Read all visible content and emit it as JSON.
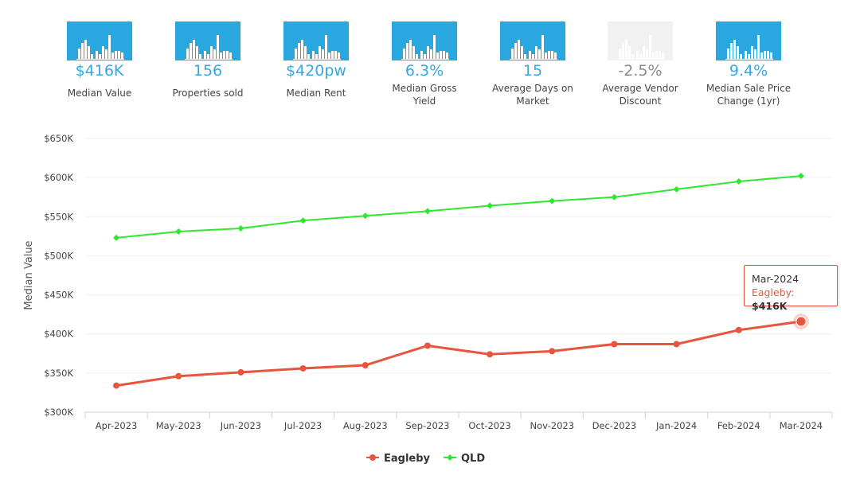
{
  "stats": [
    {
      "value": "$416K",
      "label": "Median Value",
      "icon": "bar-chart-icon",
      "tone": "blue"
    },
    {
      "value": "156",
      "label": "Properties sold",
      "icon": "bar-chart-icon",
      "tone": "blue"
    },
    {
      "value": "$420pw",
      "label": "Median Rent",
      "icon": "bar-chart-icon",
      "tone": "blue"
    },
    {
      "value": "6.3%",
      "label": "Median Gross Yield",
      "icon": "bar-chart-icon",
      "tone": "blue"
    },
    {
      "value": "15",
      "label": "Average Days on Market",
      "icon": "bar-chart-icon",
      "tone": "blue"
    },
    {
      "value": "-2.5%",
      "label": "Average Vendor Discount",
      "icon": "bar-chart-icon",
      "tone": "grey"
    },
    {
      "value": "9.4%",
      "label": "Median Sale Price Change (1yr)",
      "icon": "bar-chart-icon",
      "tone": "blue"
    }
  ],
  "chart_data": {
    "type": "line",
    "title": "",
    "xlabel": "",
    "ylabel": "Median Value",
    "categories": [
      "Apr-2023",
      "May-2023",
      "Jun-2023",
      "Jul-2023",
      "Aug-2023",
      "Sep-2023",
      "Oct-2023",
      "Nov-2023",
      "Dec-2023",
      "Jan-2024",
      "Feb-2024",
      "Mar-2024"
    ],
    "ylim": [
      300000,
      650000
    ],
    "yticks": [
      300000,
      350000,
      400000,
      450000,
      500000,
      550000,
      600000,
      650000
    ],
    "ytick_labels": [
      "$300K",
      "$350K",
      "$400K",
      "$450K",
      "$500K",
      "$550K",
      "$600K",
      "$650K"
    ],
    "series": [
      {
        "name": "Eagleby",
        "color": "#e8553e",
        "values": [
          334000,
          346000,
          351000,
          356000,
          360000,
          385000,
          374000,
          378000,
          387000,
          387000,
          405000,
          416000
        ]
      },
      {
        "name": "QLD",
        "color": "#2ee82e",
        "values": [
          523000,
          531000,
          535000,
          545000,
          551000,
          557000,
          564000,
          570000,
          575000,
          585000,
          595000,
          602000
        ]
      }
    ],
    "grid": true,
    "legend": "bottom-center"
  },
  "tooltip": {
    "title": "Mar-2024",
    "series": "Eagleby",
    "value": "$416K"
  }
}
